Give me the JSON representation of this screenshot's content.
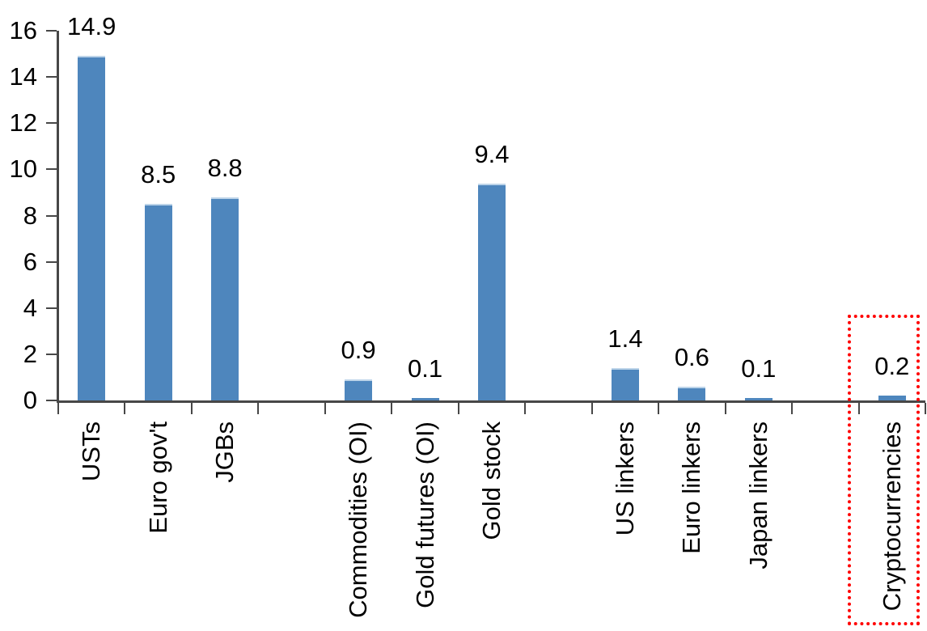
{
  "chart_data": {
    "type": "bar",
    "title": "",
    "xlabel": "",
    "ylabel": "",
    "categories": [
      "USTs",
      "Euro gov't",
      "JGBs",
      "Commodities (OI)",
      "Gold futures (OI)",
      "Gold stock",
      "US linkers",
      "Euro linkers",
      "Japan linkers",
      "Cryptocurrencies"
    ],
    "values": [
      14.9,
      8.5,
      8.8,
      0.9,
      0.1,
      9.4,
      1.4,
      0.6,
      0.1,
      0.2
    ],
    "value_labels": [
      "14.9",
      "8.5",
      "8.8",
      "0.9",
      "0.1",
      "9.4",
      "1.4",
      "0.6",
      "0.1",
      "0.2"
    ],
    "slots": [
      0,
      1,
      2,
      4,
      5,
      6,
      8,
      9,
      10,
      12
    ],
    "total_slots": 13,
    "ylim": [
      0,
      16
    ],
    "yticks": [
      0,
      2,
      4,
      6,
      8,
      10,
      12,
      14,
      16
    ],
    "grid": false,
    "legend": null,
    "colors": {
      "bar": "#4e86bd",
      "bar_top_highlight": "#bdd4e9",
      "axis": "#474747",
      "text": "#000000",
      "highlight_border": "#ff0000"
    },
    "highlight": {
      "category": "Cryptocurrencies",
      "style": "dotted-box"
    }
  }
}
